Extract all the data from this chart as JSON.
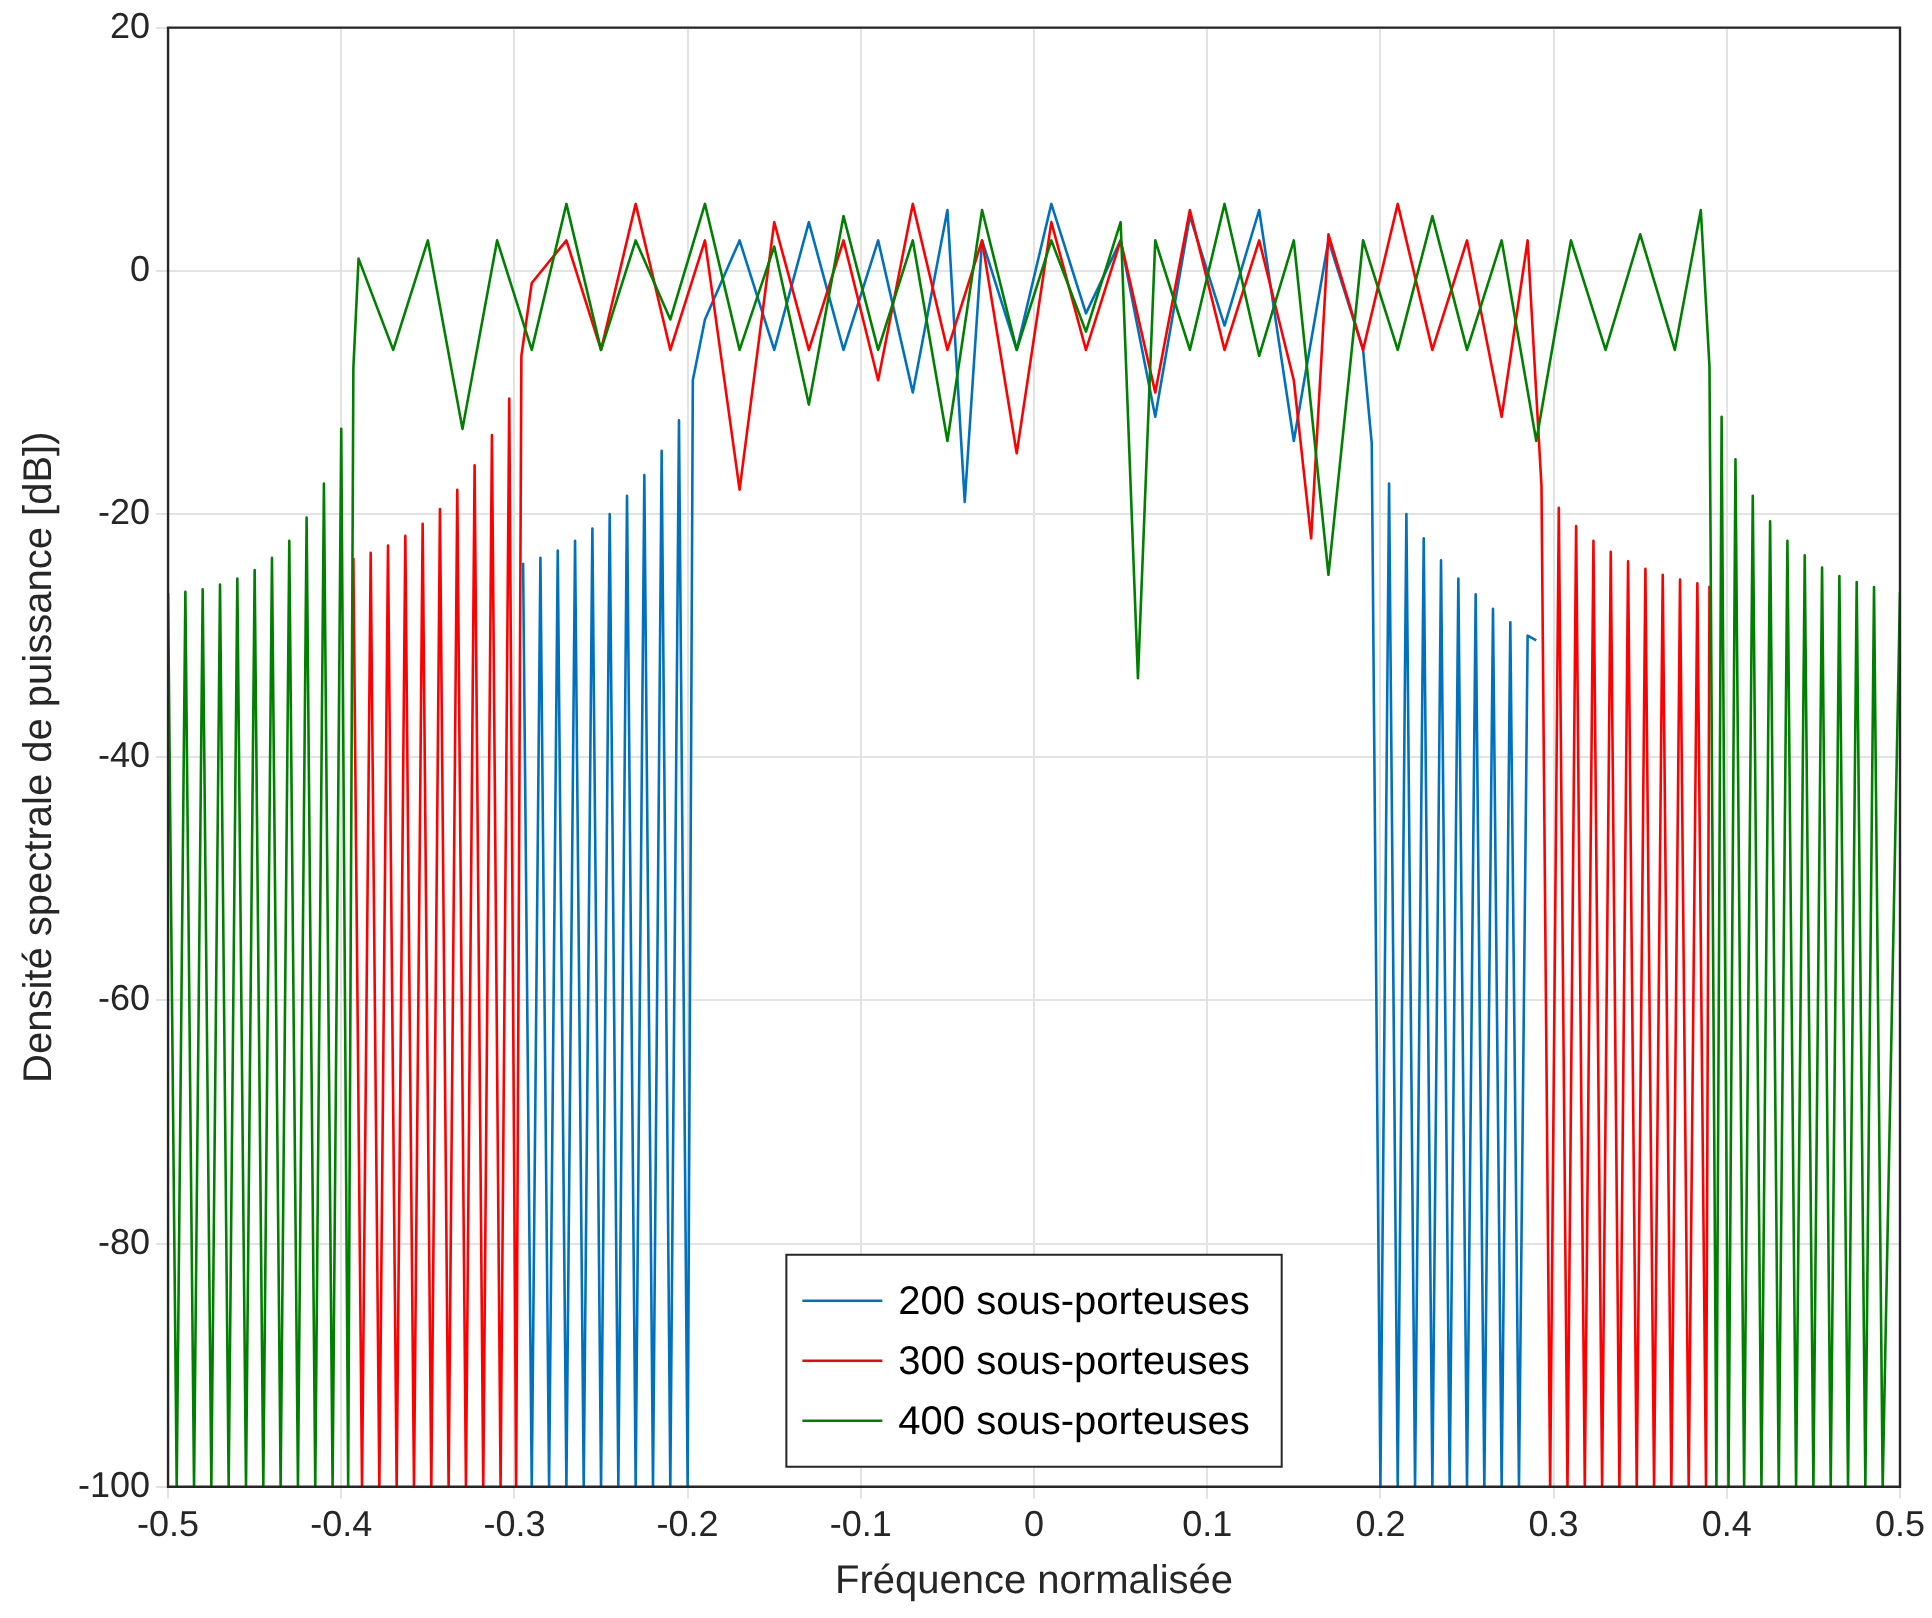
{
  "chart_data": {
    "type": "line",
    "xlabel": "Fréquence normalisée",
    "ylabel": "Densité spectrale de puissance [dB])",
    "xlim": [
      -0.5,
      0.5
    ],
    "xticks": [
      -0.5,
      -0.4,
      -0.3,
      -0.2,
      -0.1,
      0,
      0.1,
      0.2,
      0.3,
      0.4,
      0.5
    ],
    "ylim": [
      -100,
      20
    ],
    "yticks": [
      -100,
      -80,
      -60,
      -40,
      -20,
      0,
      20
    ],
    "grid": true,
    "legend": "bottom",
    "series": [
      {
        "name": "200 sous-porteuses",
        "color": "#0072bd",
        "x": [
          -0.295,
          -0.29,
          -0.285,
          -0.28,
          -0.275,
          -0.27,
          -0.265,
          -0.26,
          -0.255,
          -0.25,
          -0.245,
          -0.24,
          -0.235,
          -0.23,
          -0.225,
          -0.22,
          -0.215,
          -0.21,
          -0.205,
          -0.2,
          -0.197,
          -0.19,
          -0.17,
          -0.15,
          -0.13,
          -0.11,
          -0.09,
          -0.07,
          -0.05,
          -0.04,
          -0.03,
          -0.01,
          0.01,
          0.03,
          0.05,
          0.07,
          0.09,
          0.11,
          0.13,
          0.15,
          0.17,
          0.19,
          0.195,
          0.2,
          0.205,
          0.21,
          0.215,
          0.22,
          0.225,
          0.23,
          0.235,
          0.24,
          0.245,
          0.25,
          0.255,
          0.26,
          0.265,
          0.27,
          0.275,
          0.28,
          0.285,
          0.29
        ],
        "values": [
          -24,
          -100,
          -23.6,
          -100,
          -23,
          -100,
          -22.2,
          -100,
          -21.2,
          -100,
          -20,
          -100,
          -18.5,
          -100,
          -16.8,
          -100,
          -14.8,
          -100,
          -12.3,
          -100,
          -9,
          -4,
          2.5,
          -6.5,
          4,
          -6.5,
          2.5,
          -10,
          5,
          -19,
          2.5,
          -6.5,
          5.5,
          -3.5,
          2.5,
          -12,
          4.5,
          -4.5,
          5,
          -14,
          2.5,
          -6.5,
          -14.2,
          -100,
          -17.5,
          -100,
          -20,
          -100,
          -22,
          -100,
          -23.8,
          -100,
          -25.3,
          -100,
          -26.6,
          -100,
          -27.8,
          -100,
          -28.9,
          -100,
          -30,
          -30.4
        ]
      },
      {
        "name": "300 sous-porteuses",
        "color": "#ff0000",
        "x": [
          -0.393,
          -0.388,
          -0.383,
          -0.378,
          -0.373,
          -0.368,
          -0.363,
          -0.358,
          -0.353,
          -0.348,
          -0.343,
          -0.338,
          -0.333,
          -0.328,
          -0.323,
          -0.318,
          -0.313,
          -0.308,
          -0.303,
          -0.299,
          -0.296,
          -0.29,
          -0.27,
          -0.25,
          -0.23,
          -0.21,
          -0.19,
          -0.17,
          -0.15,
          -0.13,
          -0.11,
          -0.09,
          -0.07,
          -0.05,
          -0.03,
          -0.01,
          0.01,
          0.03,
          0.05,
          0.07,
          0.09,
          0.11,
          0.13,
          0.15,
          0.16,
          0.17,
          0.19,
          0.21,
          0.23,
          0.25,
          0.27,
          0.285,
          0.293,
          0.298,
          0.303,
          0.308,
          0.313,
          0.318,
          0.323,
          0.328,
          0.333,
          0.338,
          0.343,
          0.348,
          0.353,
          0.358,
          0.363,
          0.368,
          0.373,
          0.378,
          0.383,
          0.388,
          0.39
        ],
        "values": [
          -23.6,
          -100,
          -23.2,
          -100,
          -22.6,
          -100,
          -21.8,
          -100,
          -20.8,
          -100,
          -19.6,
          -100,
          -18,
          -100,
          -16,
          -100,
          -13.5,
          -100,
          -10.5,
          -100,
          -7,
          -1,
          2.5,
          -6.5,
          5.5,
          -6.5,
          2.5,
          -18,
          4,
          -6.5,
          2.5,
          -9,
          5.5,
          -6.5,
          2.5,
          -15,
          4,
          -6.5,
          2.5,
          -10,
          5,
          -6.5,
          2.5,
          -9,
          -22,
          3,
          -6.5,
          5.5,
          -6.5,
          2.5,
          -12,
          2.5,
          -17.7,
          -100,
          -19.5,
          -100,
          -21,
          -100,
          -22.2,
          -100,
          -23.1,
          -100,
          -23.9,
          -100,
          -24.5,
          -100,
          -25,
          -100,
          -25.4,
          -100,
          -25.7,
          -100,
          -25.9
        ]
      },
      {
        "name": "400 sous-porteuses",
        "color": "#008000",
        "x": [
          -0.5,
          -0.495,
          -0.49,
          -0.485,
          -0.48,
          -0.475,
          -0.47,
          -0.465,
          -0.46,
          -0.455,
          -0.45,
          -0.445,
          -0.44,
          -0.435,
          -0.43,
          -0.425,
          -0.42,
          -0.415,
          -0.41,
          -0.405,
          -0.4,
          -0.396,
          -0.393,
          -0.39,
          -0.37,
          -0.35,
          -0.33,
          -0.31,
          -0.29,
          -0.27,
          -0.25,
          -0.23,
          -0.21,
          -0.19,
          -0.17,
          -0.15,
          -0.13,
          -0.11,
          -0.09,
          -0.07,
          -0.05,
          -0.03,
          -0.01,
          0.01,
          0.03,
          0.05,
          0.06,
          0.07,
          0.09,
          0.11,
          0.13,
          0.15,
          0.17,
          0.19,
          0.21,
          0.23,
          0.25,
          0.27,
          0.29,
          0.31,
          0.33,
          0.35,
          0.37,
          0.385,
          0.39,
          0.394,
          0.397,
          0.401,
          0.405,
          0.41,
          0.415,
          0.42,
          0.425,
          0.43,
          0.435,
          0.44,
          0.445,
          0.45,
          0.455,
          0.46,
          0.465,
          0.47,
          0.475,
          0.48,
          0.485,
          0.49,
          0.5
        ],
        "values": [
          -26.5,
          -100,
          -26.4,
          -100,
          -26.2,
          -100,
          -25.8,
          -100,
          -25.3,
          -100,
          -24.6,
          -100,
          -23.6,
          -100,
          -22.2,
          -100,
          -20.3,
          -100,
          -17.5,
          -100,
          -13,
          -100,
          -8,
          1,
          -6.5,
          2.5,
          -13,
          2.5,
          -6.5,
          5.5,
          -6.5,
          2.5,
          -4,
          5.5,
          -6.5,
          2,
          -11,
          4.5,
          -6.5,
          2.5,
          -14,
          5,
          -6.5,
          2.5,
          -5,
          4,
          -33.5,
          2.5,
          -6.5,
          5.5,
          -7,
          2.5,
          -25,
          2.5,
          -6.5,
          4.5,
          -6.5,
          2.5,
          -14,
          2.5,
          -6.5,
          3,
          -6.5,
          5,
          -7.9,
          -100,
          -12,
          -100,
          -15.5,
          -100,
          -18.5,
          -100,
          -20.6,
          -100,
          -22.2,
          -100,
          -23.4,
          -100,
          -24.4,
          -100,
          -25.1,
          -100,
          -25.6,
          -100,
          -26,
          -100,
          -26.4
        ]
      }
    ]
  }
}
